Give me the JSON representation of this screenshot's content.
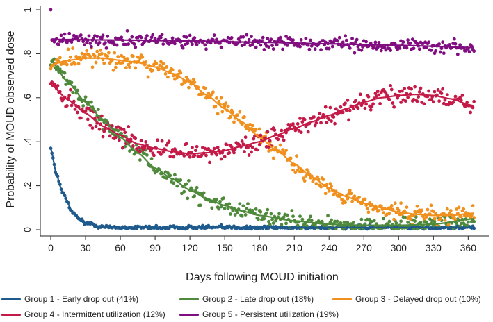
{
  "chart_data": {
    "type": "scatter",
    "title": "",
    "xlabel": "Days following MOUD initiation",
    "ylabel": "Probability of MOUD observed dose",
    "xlim": [
      0,
      365
    ],
    "ylim": [
      0,
      1
    ],
    "xticks": [
      0,
      30,
      60,
      90,
      120,
      150,
      180,
      210,
      240,
      270,
      300,
      330,
      360
    ],
    "yticks": [
      0,
      0.2,
      0.4,
      0.6,
      0.8,
      1
    ],
    "ytick_labels": [
      "0",
      ".2",
      ".4",
      ".6",
      ".8",
      "1"
    ],
    "grid": false,
    "legend_position": "bottom",
    "series": [
      {
        "name": "Group 1 - Early drop out (41%)",
        "color": "#1f5a8c",
        "x": [
          0,
          5,
          10,
          20,
          30,
          45,
          60,
          90,
          120,
          180,
          240,
          300,
          365
        ],
        "fitted": [
          0.37,
          0.25,
          0.17,
          0.07,
          0.03,
          0.012,
          0.01,
          0.01,
          0.01,
          0.01,
          0.01,
          0.01,
          0.01
        ]
      },
      {
        "name": "Group 2 - Late drop out (18%)",
        "color": "#4f8a3c",
        "x": [
          0,
          15,
          30,
          45,
          60,
          75,
          90,
          105,
          120,
          135,
          150,
          165,
          180,
          210,
          240,
          270,
          300,
          330,
          365
        ],
        "fitted": [
          0.77,
          0.67,
          0.58,
          0.5,
          0.42,
          0.35,
          0.28,
          0.23,
          0.18,
          0.14,
          0.11,
          0.085,
          0.065,
          0.04,
          0.025,
          0.02,
          0.02,
          0.025,
          0.05
        ]
      },
      {
        "name": "Group 3 - Delayed drop out (10%)",
        "color": "#f0901e",
        "x": [
          0,
          15,
          30,
          45,
          60,
          75,
          90,
          105,
          120,
          135,
          150,
          165,
          180,
          195,
          210,
          225,
          240,
          255,
          270,
          285,
          300,
          315,
          330,
          345,
          365
        ],
        "fitted": [
          0.75,
          0.77,
          0.78,
          0.78,
          0.77,
          0.76,
          0.74,
          0.71,
          0.67,
          0.61,
          0.55,
          0.49,
          0.42,
          0.36,
          0.3,
          0.24,
          0.19,
          0.15,
          0.12,
          0.1,
          0.08,
          0.07,
          0.065,
          0.065,
          0.075
        ]
      },
      {
        "name": "Group 4 - Intermittent utilization (12%)",
        "color": "#c41a48",
        "x": [
          0,
          15,
          30,
          45,
          60,
          75,
          90,
          105,
          120,
          135,
          150,
          165,
          180,
          195,
          210,
          225,
          240,
          255,
          270,
          285,
          300,
          315,
          330,
          345,
          365
        ],
        "fitted": [
          0.66,
          0.59,
          0.53,
          0.47,
          0.43,
          0.39,
          0.37,
          0.355,
          0.345,
          0.35,
          0.36,
          0.38,
          0.4,
          0.43,
          0.46,
          0.49,
          0.52,
          0.55,
          0.58,
          0.6,
          0.61,
          0.615,
          0.61,
          0.595,
          0.56
        ]
      },
      {
        "name": "Group 5 - Persistent utilization (19%)",
        "color": "#800e80",
        "x": [
          0,
          60,
          120,
          180,
          240,
          300,
          365
        ],
        "fitted": [
          0.865,
          0.862,
          0.858,
          0.852,
          0.845,
          0.838,
          0.828
        ]
      }
    ]
  }
}
